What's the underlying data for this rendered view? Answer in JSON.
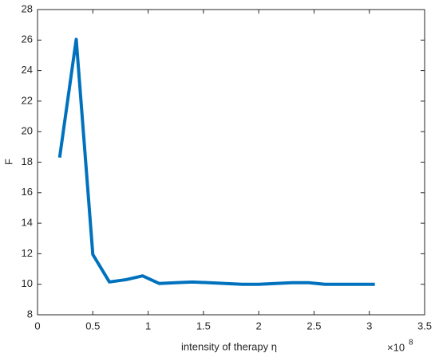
{
  "chart_data": {
    "type": "line",
    "xlabel": "intensity of therapy η",
    "ylabel": "F",
    "x_multiplier": "×10",
    "x_exponent": "8",
    "x": [
      0.2,
      0.35,
      0.5,
      0.65,
      0.8,
      0.95,
      1.1,
      1.25,
      1.4,
      1.55,
      1.7,
      1.85,
      2.0,
      2.15,
      2.3,
      2.45,
      2.6,
      2.75,
      2.9,
      3.05
    ],
    "series": [
      {
        "color": "#0072bd",
        "values": [
          18.3,
          26.05,
          11.95,
          10.15,
          10.3,
          10.55,
          10.05,
          10.1,
          10.15,
          10.1,
          10.05,
          10.0,
          10.0,
          10.05,
          10.1,
          10.1,
          10.0,
          10.0,
          10.0,
          10.0
        ]
      }
    ],
    "xlim": [
      0,
      3.5
    ],
    "xticks": [
      0,
      0.5,
      1,
      1.5,
      2,
      2.5,
      3,
      3.5
    ],
    "ylim": [
      8,
      28
    ],
    "yticks": [
      8,
      10,
      12,
      14,
      16,
      18,
      20,
      22,
      24,
      26,
      28
    ]
  }
}
